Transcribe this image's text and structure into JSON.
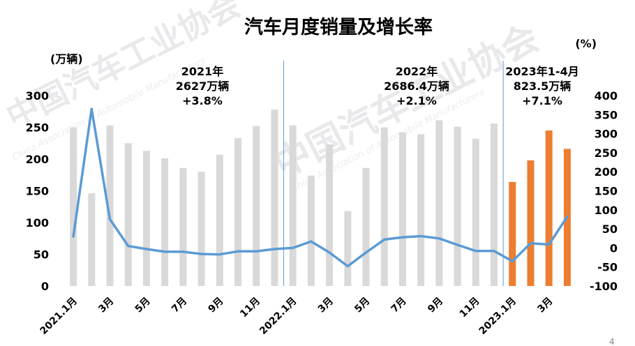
{
  "chart_data": {
    "type": "bar",
    "title": "汽车月度销量及增长率",
    "left_unit": "(万辆)",
    "right_unit": "(%)",
    "left_axis": {
      "ticks": [
        "0",
        "50",
        "100",
        "150",
        "200",
        "250",
        "300"
      ],
      "ylim": [
        0,
        300
      ]
    },
    "right_axis": {
      "ticks": [
        "-100",
        "-50",
        "0",
        "50",
        "100",
        "150",
        "200",
        "250",
        "300",
        "350",
        "400"
      ],
      "ylim": [
        -100,
        400
      ]
    },
    "x_tick_labels": [
      "2021.1月",
      "3月",
      "5月",
      "7月",
      "9月",
      "11月",
      "2022.1月",
      "3月",
      "5月",
      "7月",
      "9月",
      "11月",
      "2023.1月",
      "3月"
    ],
    "x_tick_months": [
      0,
      2,
      4,
      6,
      8,
      10,
      12,
      14,
      16,
      18,
      20,
      22,
      24,
      26
    ],
    "series": [
      {
        "type": "bar",
        "axis": "left",
        "color": "#d9d9d9",
        "months": [
          0,
          1,
          2,
          3,
          4,
          5,
          6,
          7,
          8,
          9,
          10,
          11,
          12,
          13,
          14,
          15,
          16,
          17,
          18,
          19,
          20,
          21,
          22,
          23
        ],
        "values": [
          250,
          146,
          253,
          225,
          213,
          201,
          186,
          180,
          207,
          233,
          252,
          278,
          253,
          174,
          223,
          118,
          186,
          250,
          242,
          239,
          261,
          251,
          232,
          256
        ]
      },
      {
        "type": "bar",
        "axis": "left",
        "color": "#ed7d31",
        "months": [
          24,
          25,
          26,
          27
        ],
        "values": [
          164,
          198,
          245,
          216
        ]
      },
      {
        "type": "line",
        "axis": "right",
        "color": "#5b9bd5",
        "months": [
          0,
          1,
          2,
          3,
          4,
          5,
          6,
          7,
          8,
          9,
          10,
          11,
          12,
          13,
          14,
          15,
          16,
          17,
          18,
          19,
          20,
          21,
          22,
          23,
          24,
          25,
          26,
          27
        ],
        "values": [
          30,
          365,
          75,
          5,
          -3,
          -10,
          -10,
          -16,
          -17,
          -9,
          -9,
          -3,
          0,
          17,
          -12,
          -48,
          -12,
          22,
          28,
          31,
          25,
          8,
          -8,
          -8,
          -35,
          12,
          9,
          82
        ]
      }
    ],
    "period_annotations": [
      {
        "lines": [
          "2021年",
          "2627万辆",
          "+3.8%"
        ]
      },
      {
        "lines": [
          "2022年",
          "2686.4万辆",
          "+2.1%"
        ]
      },
      {
        "lines": [
          "2023年1-4月",
          "823.5万辆",
          "+7.1%"
        ]
      }
    ],
    "dividers_after_month": [
      11,
      23
    ],
    "watermark": {
      "cn": "中国汽车工业协会",
      "en": "China Association of Automobile Manufacturers"
    },
    "page_number": "4"
  }
}
